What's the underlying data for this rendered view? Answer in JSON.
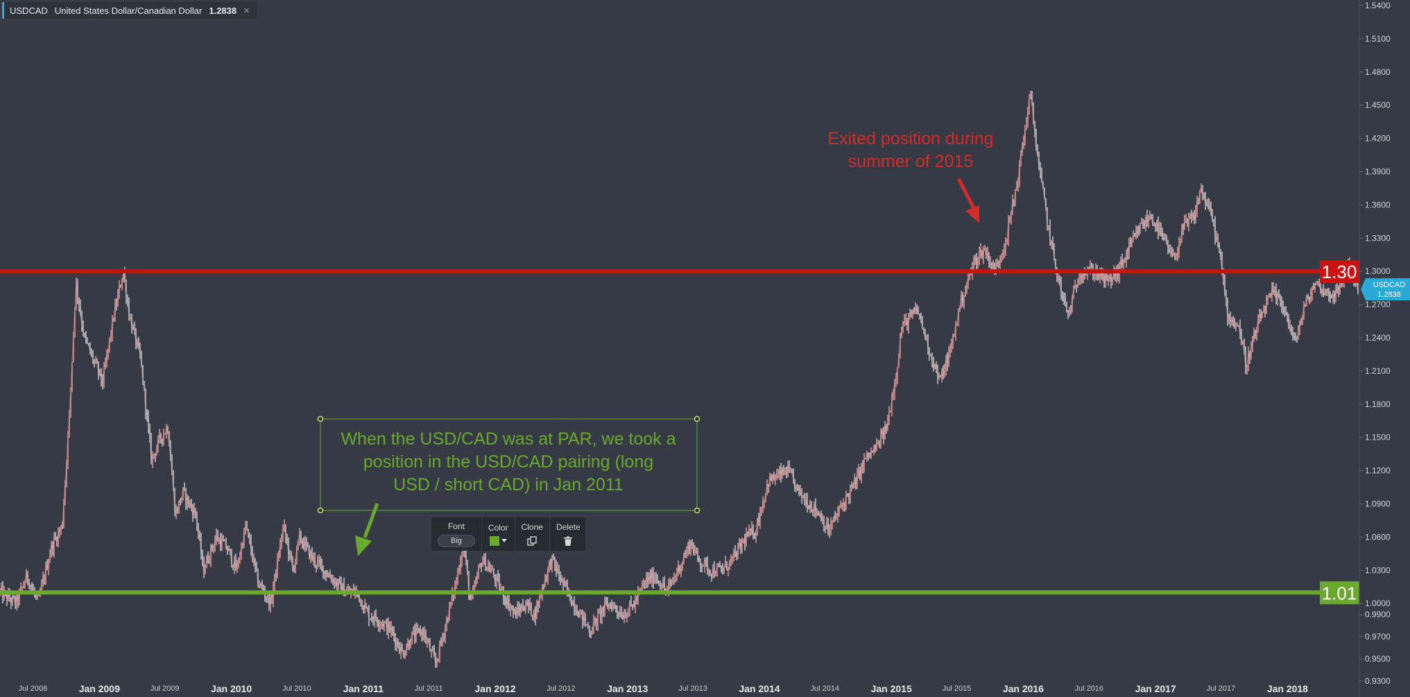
{
  "instrument": {
    "symbol": "USDCAD",
    "name": "United States Dollar/Canadian Dollar",
    "price": "1.2838",
    "close_glyph": "×"
  },
  "text_toolbar": {
    "font_label": "Font",
    "font_value": "Big",
    "color_label": "Color",
    "color_value": "#6aa82e",
    "clone_label": "Clone",
    "delete_label": "Delete",
    "clone_icon": "copy-icon",
    "delete_icon": "trash-icon"
  },
  "chart_data": {
    "type": "line",
    "series": [],
    "x_range": [
      "2008-04-01",
      "2018-07-15"
    ],
    "ylim": [
      0.925,
      1.545
    ],
    "x_ticks": [
      {
        "date": "2008-07-01",
        "label": "Jul 2008",
        "major": false
      },
      {
        "date": "2009-01-01",
        "label": "Jan 2009",
        "major": true
      },
      {
        "date": "2009-07-01",
        "label": "Jul 2009",
        "major": false
      },
      {
        "date": "2010-01-01",
        "label": "Jan 2010",
        "major": true
      },
      {
        "date": "2010-07-01",
        "label": "Jul 2010",
        "major": false
      },
      {
        "date": "2011-01-01",
        "label": "Jan 2011",
        "major": true
      },
      {
        "date": "2011-07-01",
        "label": "Jul 2011",
        "major": false
      },
      {
        "date": "2012-01-01",
        "label": "Jan 2012",
        "major": true
      },
      {
        "date": "2012-07-01",
        "label": "Jul 2012",
        "major": false
      },
      {
        "date": "2013-01-01",
        "label": "Jan 2013",
        "major": true
      },
      {
        "date": "2013-07-01",
        "label": "Jul 2013",
        "major": false
      },
      {
        "date": "2014-01-01",
        "label": "Jan 2014",
        "major": true
      },
      {
        "date": "2014-07-01",
        "label": "Jul 2014",
        "major": false
      },
      {
        "date": "2015-01-01",
        "label": "Jan 2015",
        "major": true
      },
      {
        "date": "2015-07-01",
        "label": "Jul 2015",
        "major": false
      },
      {
        "date": "2016-01-01",
        "label": "Jan 2016",
        "major": true
      },
      {
        "date": "2016-07-01",
        "label": "Jul 2016",
        "major": false
      },
      {
        "date": "2017-01-01",
        "label": "Jan 2017",
        "major": true
      },
      {
        "date": "2017-07-01",
        "label": "Jul 2017",
        "major": false
      },
      {
        "date": "2018-01-01",
        "label": "Jan 2018",
        "major": true
      }
    ],
    "y_ticks": [
      "1.5400",
      "1.5100",
      "1.4800",
      "1.4500",
      "1.4200",
      "1.3900",
      "1.3600",
      "1.3300",
      "1.3000",
      "1.2700",
      "1.2400",
      "1.2100",
      "1.1800",
      "1.1500",
      "1.1200",
      "1.0900",
      "1.0600",
      "1.0300",
      "1.0000",
      "0.9900",
      "0.9700",
      "0.9500",
      "0.9300"
    ],
    "price_points": [
      [
        "2008-04-01",
        1.01
      ],
      [
        "2008-05-15",
        1.0
      ],
      [
        "2008-06-15",
        1.025
      ],
      [
        "2008-07-15",
        1.0
      ],
      [
        "2008-08-20",
        1.05
      ],
      [
        "2008-09-20",
        1.07
      ],
      [
        "2008-10-10",
        1.17
      ],
      [
        "2008-10-28",
        1.29
      ],
      [
        "2008-11-20",
        1.24
      ],
      [
        "2008-12-15",
        1.22
      ],
      [
        "2009-01-10",
        1.2
      ],
      [
        "2009-02-10",
        1.26
      ],
      [
        "2009-03-08",
        1.3
      ],
      [
        "2009-03-25",
        1.26
      ],
      [
        "2009-04-25",
        1.22
      ],
      [
        "2009-05-25",
        1.13
      ],
      [
        "2009-06-20",
        1.15
      ],
      [
        "2009-07-10",
        1.16
      ],
      [
        "2009-07-30",
        1.08
      ],
      [
        "2009-08-20",
        1.1
      ],
      [
        "2009-09-25",
        1.08
      ],
      [
        "2009-10-15",
        1.03
      ],
      [
        "2009-11-20",
        1.06
      ],
      [
        "2009-12-20",
        1.05
      ],
      [
        "2010-01-15",
        1.03
      ],
      [
        "2010-02-10",
        1.07
      ],
      [
        "2010-03-15",
        1.02
      ],
      [
        "2010-04-20",
        1.0
      ],
      [
        "2010-05-25",
        1.07
      ],
      [
        "2010-06-20",
        1.03
      ],
      [
        "2010-07-10",
        1.06
      ],
      [
        "2010-08-15",
        1.04
      ],
      [
        "2010-09-15",
        1.03
      ],
      [
        "2010-10-15",
        1.02
      ],
      [
        "2010-11-15",
        1.01
      ],
      [
        "2010-12-15",
        1.01
      ],
      [
        "2011-01-15",
        0.99
      ],
      [
        "2011-02-15",
        0.985
      ],
      [
        "2011-03-20",
        0.975
      ],
      [
        "2011-04-20",
        0.955
      ],
      [
        "2011-05-15",
        0.97
      ],
      [
        "2011-06-15",
        0.975
      ],
      [
        "2011-07-20",
        0.945
      ],
      [
        "2011-08-20",
        0.985
      ],
      [
        "2011-09-15",
        1.02
      ],
      [
        "2011-10-05",
        1.055
      ],
      [
        "2011-10-25",
        1.0
      ],
      [
        "2011-11-25",
        1.04
      ],
      [
        "2011-12-20",
        1.03
      ],
      [
        "2012-01-20",
        1.01
      ],
      [
        "2012-02-25",
        0.99
      ],
      [
        "2012-03-25",
        1.0
      ],
      [
        "2012-04-20",
        0.99
      ],
      [
        "2012-05-15",
        1.02
      ],
      [
        "2012-06-05",
        1.04
      ],
      [
        "2012-07-10",
        1.015
      ],
      [
        "2012-08-15",
        0.995
      ],
      [
        "2012-09-20",
        0.975
      ],
      [
        "2012-10-25",
        0.995
      ],
      [
        "2012-11-15",
        1.0
      ],
      [
        "2012-12-20",
        0.99
      ],
      [
        "2013-01-20",
        1.0
      ],
      [
        "2013-02-20",
        1.02
      ],
      [
        "2013-03-20",
        1.025
      ],
      [
        "2013-04-20",
        1.01
      ],
      [
        "2013-05-20",
        1.03
      ],
      [
        "2013-06-25",
        1.055
      ],
      [
        "2013-07-15",
        1.04
      ],
      [
        "2013-08-20",
        1.03
      ],
      [
        "2013-09-20",
        1.03
      ],
      [
        "2013-10-20",
        1.04
      ],
      [
        "2013-11-25",
        1.06
      ],
      [
        "2013-12-20",
        1.065
      ],
      [
        "2014-01-25",
        1.11
      ],
      [
        "2014-03-20",
        1.12
      ],
      [
        "2014-04-20",
        1.1
      ],
      [
        "2014-05-20",
        1.09
      ],
      [
        "2014-06-20",
        1.08
      ],
      [
        "2014-07-10",
        1.065
      ],
      [
        "2014-08-20",
        1.09
      ],
      [
        "2014-09-25",
        1.11
      ],
      [
        "2014-10-20",
        1.13
      ],
      [
        "2014-11-20",
        1.14
      ],
      [
        "2014-12-20",
        1.16
      ],
      [
        "2015-01-15",
        1.21
      ],
      [
        "2015-01-30",
        1.25
      ],
      [
        "2015-03-15",
        1.265
      ],
      [
        "2015-04-15",
        1.23
      ],
      [
        "2015-05-15",
        1.2
      ],
      [
        "2015-06-15",
        1.23
      ],
      [
        "2015-07-10",
        1.27
      ],
      [
        "2015-08-20",
        1.31
      ],
      [
        "2015-09-15",
        1.32
      ],
      [
        "2015-10-15",
        1.3
      ],
      [
        "2015-11-15",
        1.33
      ],
      [
        "2015-12-15",
        1.38
      ],
      [
        "2016-01-20",
        1.46
      ],
      [
        "2016-02-15",
        1.39
      ],
      [
        "2016-03-15",
        1.33
      ],
      [
        "2016-04-15",
        1.28
      ],
      [
        "2016-05-05",
        1.26
      ],
      [
        "2016-06-05",
        1.3
      ],
      [
        "2016-07-20",
        1.3
      ],
      [
        "2016-08-20",
        1.29
      ],
      [
        "2016-09-20",
        1.3
      ],
      [
        "2016-10-20",
        1.32
      ],
      [
        "2016-11-20",
        1.34
      ],
      [
        "2016-12-20",
        1.35
      ],
      [
        "2017-01-20",
        1.33
      ],
      [
        "2017-02-20",
        1.31
      ],
      [
        "2017-03-20",
        1.34
      ],
      [
        "2017-04-20",
        1.35
      ],
      [
        "2017-05-05",
        1.375
      ],
      [
        "2017-06-05",
        1.35
      ],
      [
        "2017-06-25",
        1.32
      ],
      [
        "2017-07-20",
        1.26
      ],
      [
        "2017-08-20",
        1.25
      ],
      [
        "2017-09-08",
        1.215
      ],
      [
        "2017-10-20",
        1.26
      ],
      [
        "2017-11-20",
        1.28
      ],
      [
        "2017-12-20",
        1.27
      ],
      [
        "2018-01-20",
        1.235
      ],
      [
        "2018-02-20",
        1.27
      ],
      [
        "2018-03-20",
        1.29
      ],
      [
        "2018-04-20",
        1.28
      ],
      [
        "2018-05-20",
        1.28
      ],
      [
        "2018-06-20",
        1.31
      ],
      [
        "2018-07-15",
        1.2838
      ]
    ],
    "levels": [
      {
        "value": 1.3,
        "label": "1.30",
        "color": "#cc1111"
      },
      {
        "value": 1.01,
        "label": "1.01",
        "color": "#6aa82e"
      }
    ],
    "current_price_marker": {
      "value": 1.2838,
      "symbol": "USDCAD",
      "price": "1.2838",
      "color": "#2aa8d6"
    },
    "annotations": [
      {
        "lines": [
          "Exited position during",
          "summer of 2015"
        ],
        "color": "#d42a2a",
        "arrow_to": [
          "2015-08-10",
          1.3
        ]
      },
      {
        "lines": [
          "When the USD/CAD was at PAR, we took a",
          "position in the USD/CAD pairing (long",
          "USD / short CAD) in Jan 2011"
        ],
        "color": "#6aa82e",
        "arrow_to": [
          "2010-11-25",
          1.01
        ]
      }
    ],
    "candle_color_up": "#e8a0a0",
    "candle_color_down": "#cfd3da"
  }
}
